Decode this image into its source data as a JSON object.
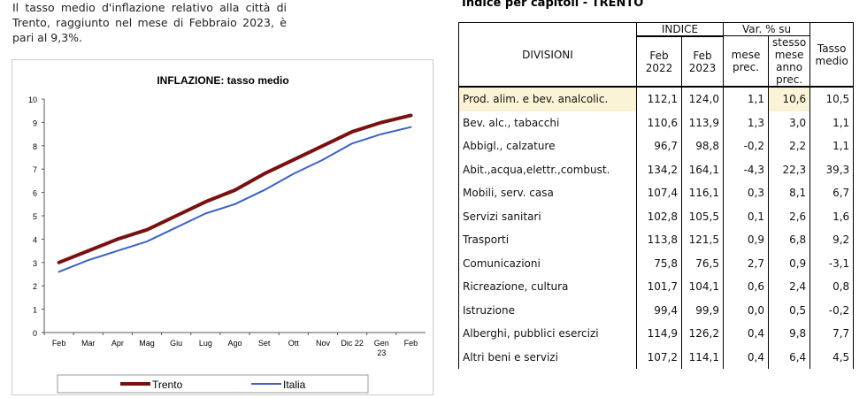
{
  "intro": "Il tasso medio d'inflazione relativo alla città di Trento, raggiunto nel mese di Febbraio 2023, è pari al 9,3%.",
  "chart_data": {
    "type": "line",
    "title": "INFLAZIONE: tasso medio",
    "categories": [
      "Feb",
      "Mar",
      "Apr",
      "Mag",
      "Giu",
      "Lug",
      "Ago",
      "Set",
      "Ott",
      "Nov",
      "Dic 22",
      "Gen 23",
      "Feb"
    ],
    "ylim": [
      0,
      10
    ],
    "yticks": [
      0,
      1,
      2,
      3,
      4,
      5,
      6,
      7,
      8,
      9,
      10
    ],
    "legend_position": "bottom",
    "series": [
      {
        "name": "Trento",
        "color": "#7a1010",
        "values": [
          3.0,
          3.5,
          4.0,
          4.4,
          5.0,
          5.6,
          6.1,
          6.8,
          7.4,
          8.0,
          8.6,
          9.0,
          9.3
        ]
      },
      {
        "name": "Italia",
        "color": "#3a62c8",
        "values": [
          2.6,
          3.1,
          3.5,
          3.9,
          4.5,
          5.1,
          5.5,
          6.1,
          6.8,
          7.4,
          8.1,
          8.5,
          8.8
        ]
      }
    ]
  },
  "table": {
    "title": "Indice per capitoli - TRENTO",
    "h_divisioni": "DIVISIONI",
    "h_indice": "INDICE",
    "h_var": "Var. % su",
    "h_feb22a": "Feb",
    "h_feb22b": "2022",
    "h_feb23a": "Feb",
    "h_feb23b": "2023",
    "h_mese": "mese prec.",
    "h_stesso": "stesso mese anno prec.",
    "h_tasso": "Tasso medio",
    "rows": [
      [
        "Prod. alim. e bev. analcolic.",
        "112,1",
        "124,0",
        "1,1",
        "10,6",
        "10,5"
      ],
      [
        "Bev. alc., tabacchi",
        "110,6",
        "113,9",
        "1,3",
        "3,0",
        "1,1"
      ],
      [
        "Abbigl., calzature",
        "96,7",
        "98,8",
        "-0,2",
        "2,2",
        "1,1"
      ],
      [
        "Abit.,acqua,elettr.,combust.",
        "134,2",
        "164,1",
        "-4,3",
        "22,3",
        "39,3"
      ],
      [
        "Mobili, serv. casa",
        "107,4",
        "116,1",
        "0,3",
        "8,1",
        "6,7"
      ],
      [
        "Servizi sanitari",
        "102,8",
        "105,5",
        "0,1",
        "2,6",
        "1,6"
      ],
      [
        "Trasporti",
        "113,8",
        "121,5",
        "0,9",
        "6,8",
        "9,2"
      ],
      [
        "Comunicazioni",
        "75,8",
        "76,5",
        "2,7",
        "0,9",
        "-3,1"
      ],
      [
        "Ricreazione, cultura",
        "101,7",
        "104,1",
        "0,6",
        "2,4",
        "0,8"
      ],
      [
        "Istruzione",
        "99,4",
        "99,9",
        "0,0",
        "0,5",
        "-0,2"
      ],
      [
        "Alberghi, pubblici esercizi",
        "114,9",
        "126,2",
        "0,4",
        "9,8",
        "7,7"
      ],
      [
        "Altri beni e servizi",
        "107,2",
        "114,1",
        "0,4",
        "6,4",
        "4,5"
      ]
    ]
  }
}
